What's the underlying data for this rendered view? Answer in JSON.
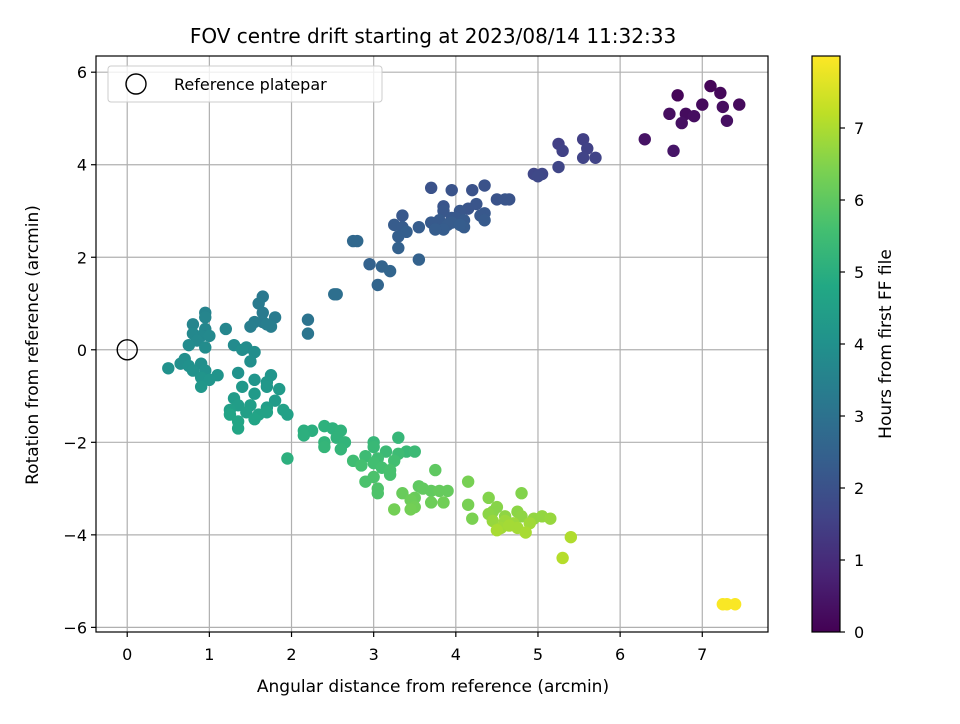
{
  "chart_data": {
    "type": "scatter",
    "title": "FOV centre drift starting at 2023/08/14 11:32:33",
    "xlabel": "Angular distance from reference (arcmin)",
    "ylabel": "Rotation from reference (arcmin)",
    "xlim": [
      -0.38,
      7.8
    ],
    "ylim": [
      -6.1,
      6.35
    ],
    "xticks": [
      0,
      1,
      2,
      3,
      4,
      5,
      6,
      7
    ],
    "yticks": [
      -6,
      -4,
      -2,
      0,
      2,
      4,
      6
    ],
    "grid": true,
    "legend": {
      "placement": "upper-left",
      "entries": [
        {
          "label": "Reference platepar",
          "marker": "open-circle"
        }
      ]
    },
    "reference_point": {
      "x": 0,
      "y": 0
    },
    "colorbar": {
      "label": "Hours from first FF file",
      "colormap": "viridis",
      "range": [
        0,
        8.0
      ],
      "ticks": [
        0,
        1,
        2,
        3,
        4,
        5,
        6,
        7
      ]
    },
    "points": [
      [
        6.7,
        5.5,
        0.1
      ],
      [
        7.1,
        5.7,
        0.1
      ],
      [
        7.22,
        5.55,
        0.15
      ],
      [
        7.45,
        5.3,
        0.2
      ],
      [
        7.0,
        5.3,
        0.2
      ],
      [
        6.8,
        5.1,
        0.25
      ],
      [
        6.6,
        5.1,
        0.3
      ],
      [
        6.9,
        5.05,
        0.3
      ],
      [
        7.25,
        5.25,
        0.3
      ],
      [
        7.3,
        4.95,
        0.35
      ],
      [
        6.75,
        4.9,
        0.35
      ],
      [
        6.3,
        4.55,
        0.4
      ],
      [
        6.65,
        4.3,
        0.45
      ],
      [
        5.55,
        4.55,
        1.5
      ],
      [
        5.25,
        4.45,
        1.5
      ],
      [
        5.6,
        4.35,
        1.55
      ],
      [
        5.3,
        4.3,
        1.55
      ],
      [
        5.55,
        4.15,
        1.6
      ],
      [
        5.7,
        4.15,
        1.6
      ],
      [
        5.25,
        3.95,
        1.65
      ],
      [
        4.95,
        3.8,
        1.7
      ],
      [
        5.05,
        3.8,
        1.7
      ],
      [
        5.0,
        3.75,
        1.75
      ],
      [
        4.35,
        3.55,
        2.0
      ],
      [
        3.7,
        3.5,
        2.0
      ],
      [
        4.2,
        3.45,
        2.0
      ],
      [
        3.95,
        3.45,
        2.05
      ],
      [
        4.65,
        3.25,
        2.05
      ],
      [
        4.5,
        3.25,
        2.05
      ],
      [
        4.6,
        3.25,
        2.1
      ],
      [
        4.25,
        3.15,
        2.1
      ],
      [
        3.85,
        3.1,
        2.1
      ],
      [
        4.15,
        3.05,
        2.1
      ],
      [
        3.85,
        3.0,
        2.15
      ],
      [
        4.05,
        3.0,
        2.15
      ],
      [
        4.35,
        2.95,
        2.2
      ],
      [
        4.3,
        2.9,
        2.2
      ],
      [
        3.35,
        2.9,
        2.2
      ],
      [
        4.0,
        2.85,
        2.2
      ],
      [
        3.95,
        2.85,
        2.2
      ],
      [
        4.1,
        2.8,
        2.25
      ],
      [
        3.8,
        2.8,
        2.25
      ],
      [
        4.35,
        2.8,
        2.25
      ],
      [
        3.7,
        2.75,
        2.25
      ],
      [
        3.95,
        2.75,
        2.3
      ],
      [
        3.9,
        2.7,
        2.3
      ],
      [
        3.25,
        2.7,
        2.3
      ],
      [
        3.35,
        2.65,
        2.3
      ],
      [
        4.1,
        2.65,
        2.3
      ],
      [
        4.05,
        2.7,
        2.35
      ],
      [
        3.55,
        2.65,
        2.35
      ],
      [
        3.85,
        2.6,
        2.35
      ],
      [
        3.75,
        2.6,
        2.35
      ],
      [
        3.4,
        2.55,
        2.4
      ],
      [
        3.3,
        2.45,
        2.4
      ],
      [
        3.3,
        2.2,
        2.45
      ],
      [
        3.55,
        1.95,
        2.5
      ],
      [
        2.95,
        1.85,
        2.5
      ],
      [
        3.1,
        1.8,
        2.55
      ],
      [
        3.2,
        1.7,
        2.6
      ],
      [
        3.05,
        1.4,
        2.6
      ],
      [
        2.75,
        2.35,
        2.7
      ],
      [
        2.8,
        2.35,
        2.7
      ],
      [
        2.55,
        1.2,
        2.9
      ],
      [
        2.52,
        1.2,
        2.9
      ],
      [
        2.2,
        0.65,
        3.05
      ],
      [
        2.2,
        0.35,
        3.1
      ],
      [
        1.65,
        1.15,
        3.2
      ],
      [
        1.6,
        1.0,
        3.25
      ],
      [
        1.65,
        0.8,
        3.25
      ],
      [
        1.8,
        0.7,
        3.3
      ],
      [
        1.65,
        0.6,
        3.3
      ],
      [
        1.55,
        0.6,
        3.35
      ],
      [
        1.5,
        0.5,
        3.4
      ],
      [
        1.75,
        0.5,
        3.4
      ],
      [
        1.7,
        0.55,
        3.4
      ],
      [
        0.95,
        0.8,
        3.55
      ],
      [
        0.95,
        0.7,
        3.6
      ],
      [
        0.8,
        0.55,
        3.6
      ],
      [
        1.2,
        0.45,
        3.65
      ],
      [
        0.95,
        0.45,
        3.65
      ],
      [
        0.8,
        0.35,
        3.7
      ],
      [
        0.9,
        0.3,
        3.7
      ],
      [
        1.0,
        0.3,
        3.75
      ],
      [
        0.85,
        0.2,
        3.75
      ],
      [
        0.75,
        0.1,
        3.8
      ],
      [
        1.3,
        0.1,
        3.8
      ],
      [
        0.95,
        0.05,
        3.85
      ],
      [
        1.45,
        0.05,
        3.85
      ],
      [
        1.4,
        0.0,
        3.9
      ],
      [
        1.55,
        -0.05,
        3.9
      ],
      [
        0.7,
        -0.2,
        3.9
      ],
      [
        1.5,
        -0.25,
        3.95
      ],
      [
        0.9,
        -0.3,
        3.95
      ],
      [
        0.65,
        -0.3,
        3.95
      ],
      [
        0.75,
        -0.35,
        4.0
      ],
      [
        0.5,
        -0.4,
        4.0
      ],
      [
        0.95,
        -0.45,
        4.0
      ],
      [
        0.8,
        -0.45,
        4.05
      ],
      [
        1.35,
        -0.5,
        4.05
      ],
      [
        1.1,
        -0.55,
        4.1
      ],
      [
        0.9,
        -0.6,
        4.1
      ],
      [
        1.0,
        -0.65,
        4.15
      ],
      [
        1.55,
        -0.65,
        4.15
      ],
      [
        1.75,
        -0.55,
        4.15
      ],
      [
        1.7,
        -0.7,
        4.2
      ],
      [
        0.9,
        -0.8,
        4.2
      ],
      [
        1.4,
        -0.8,
        4.25
      ],
      [
        1.7,
        -0.8,
        4.25
      ],
      [
        1.85,
        -0.85,
        4.3
      ],
      [
        1.55,
        -0.95,
        4.3
      ],
      [
        1.3,
        -1.05,
        4.35
      ],
      [
        1.8,
        -1.1,
        4.35
      ],
      [
        1.35,
        -1.2,
        4.4
      ],
      [
        1.5,
        -1.2,
        4.45
      ],
      [
        1.7,
        -1.25,
        4.45
      ],
      [
        1.25,
        -1.3,
        4.5
      ],
      [
        1.45,
        -1.35,
        4.5
      ],
      [
        1.9,
        -1.3,
        4.55
      ],
      [
        1.95,
        -1.4,
        4.55
      ],
      [
        1.6,
        -1.4,
        4.6
      ],
      [
        1.7,
        -1.35,
        4.6
      ],
      [
        1.25,
        -1.4,
        4.65
      ],
      [
        1.55,
        -1.5,
        4.65
      ],
      [
        1.35,
        -1.55,
        4.7
      ],
      [
        1.35,
        -1.7,
        4.7
      ],
      [
        2.15,
        -1.75,
        5.0
      ],
      [
        2.25,
        -1.75,
        5.0
      ],
      [
        2.15,
        -1.85,
        5.05
      ],
      [
        1.95,
        -2.35,
        5.05
      ],
      [
        2.4,
        -1.65,
        5.1
      ],
      [
        2.5,
        -1.7,
        5.1
      ],
      [
        2.6,
        -1.75,
        5.15
      ],
      [
        2.55,
        -1.9,
        5.15
      ],
      [
        2.4,
        -2.0,
        5.2
      ],
      [
        2.65,
        -2.0,
        5.2
      ],
      [
        2.4,
        -2.1,
        5.25
      ],
      [
        2.6,
        -2.15,
        5.25
      ],
      [
        3.0,
        -2.0,
        5.3
      ],
      [
        3.3,
        -1.9,
        5.3
      ],
      [
        3.0,
        -2.1,
        5.35
      ],
      [
        3.4,
        -2.2,
        5.35
      ],
      [
        3.5,
        -2.2,
        5.4
      ],
      [
        3.15,
        -2.2,
        5.4
      ],
      [
        3.3,
        -2.25,
        5.45
      ],
      [
        2.9,
        -2.3,
        5.45
      ],
      [
        3.05,
        -2.35,
        5.5
      ],
      [
        2.75,
        -2.4,
        5.5
      ],
      [
        3.25,
        -2.4,
        5.55
      ],
      [
        3.0,
        -2.45,
        5.55
      ],
      [
        2.85,
        -2.5,
        5.6
      ],
      [
        3.1,
        -2.55,
        5.6
      ],
      [
        3.2,
        -2.6,
        5.65
      ],
      [
        3.2,
        -2.7,
        5.65
      ],
      [
        3.0,
        -2.75,
        5.7
      ],
      [
        2.9,
        -2.85,
        5.7
      ],
      [
        3.05,
        -3.0,
        5.75
      ],
      [
        3.05,
        -3.1,
        5.75
      ],
      [
        3.75,
        -2.6,
        6.0
      ],
      [
        3.55,
        -2.95,
        6.0
      ],
      [
        3.6,
        -3.0,
        6.05
      ],
      [
        3.7,
        -3.05,
        6.05
      ],
      [
        3.8,
        -3.05,
        6.1
      ],
      [
        3.9,
        -3.05,
        6.1
      ],
      [
        3.35,
        -3.1,
        6.15
      ],
      [
        3.5,
        -3.2,
        6.15
      ],
      [
        3.45,
        -3.25,
        6.2
      ],
      [
        3.7,
        -3.3,
        6.2
      ],
      [
        3.85,
        -3.3,
        6.25
      ],
      [
        3.5,
        -3.4,
        6.25
      ],
      [
        3.25,
        -3.45,
        6.3
      ],
      [
        3.45,
        -3.45,
        6.3
      ],
      [
        4.15,
        -2.85,
        6.35
      ],
      [
        4.15,
        -3.35,
        6.35
      ],
      [
        4.2,
        -3.65,
        6.4
      ],
      [
        4.4,
        -3.2,
        6.5
      ],
      [
        4.8,
        -3.1,
        6.5
      ],
      [
        4.5,
        -3.4,
        6.55
      ],
      [
        4.45,
        -3.5,
        6.55
      ],
      [
        4.75,
        -3.5,
        6.6
      ],
      [
        4.4,
        -3.55,
        6.6
      ],
      [
        4.8,
        -3.6,
        6.65
      ],
      [
        4.6,
        -3.6,
        6.65
      ],
      [
        4.95,
        -3.65,
        6.7
      ],
      [
        5.05,
        -3.6,
        6.7
      ],
      [
        5.15,
        -3.65,
        6.75
      ],
      [
        4.45,
        -3.7,
        6.75
      ],
      [
        4.6,
        -3.7,
        6.8
      ],
      [
        4.7,
        -3.75,
        6.8
      ],
      [
        4.9,
        -3.75,
        6.85
      ],
      [
        4.55,
        -3.85,
        6.85
      ],
      [
        4.75,
        -3.85,
        6.9
      ],
      [
        4.65,
        -3.8,
        6.9
      ],
      [
        4.5,
        -3.9,
        6.95
      ],
      [
        4.85,
        -3.95,
        6.95
      ],
      [
        5.4,
        -4.05,
        7.05
      ],
      [
        5.3,
        -4.5,
        7.1
      ],
      [
        7.3,
        -5.5,
        7.95
      ],
      [
        7.4,
        -5.5,
        7.95
      ],
      [
        7.25,
        -5.5,
        7.95
      ]
    ]
  }
}
